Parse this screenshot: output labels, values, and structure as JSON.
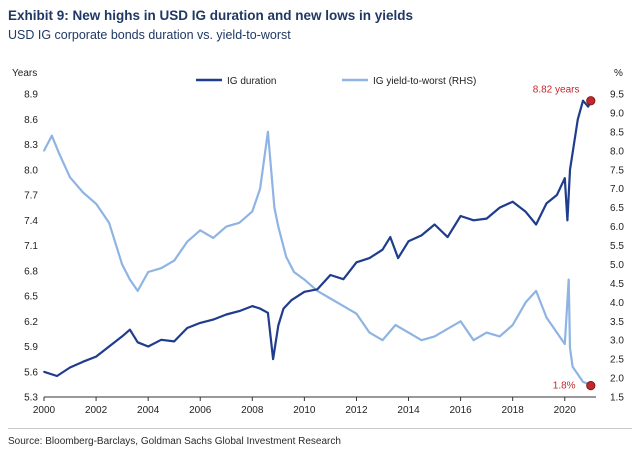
{
  "header": {
    "title": "Exhibit 9: New highs in USD IG duration and new lows in yields",
    "subtitle": "USD IG corporate bonds duration vs. yield-to-worst"
  },
  "footer": {
    "source": "Source: Bloomberg-Barclays, Goldman Sachs Global Investment Research"
  },
  "chart_data": {
    "type": "line",
    "title": "Exhibit 9: New highs in USD IG duration and new lows in yields",
    "subtitle": "USD IG corporate bonds duration vs. yield-to-worst",
    "y_left_label": "Years",
    "y_right_label": "%",
    "x_ticks": [
      "2000",
      "2002",
      "2004",
      "2006",
      "2008",
      "2010",
      "2012",
      "2014",
      "2016",
      "2018",
      "2020"
    ],
    "y_left_ticks": [
      "5.3",
      "5.6",
      "5.9",
      "6.2",
      "6.5",
      "6.8",
      "7.1",
      "7.4",
      "7.7",
      "8.0",
      "8.3",
      "8.6",
      "8.9"
    ],
    "y_right_ticks": [
      "1.5",
      "2.0",
      "2.5",
      "3.0",
      "3.5",
      "4.0",
      "4.5",
      "5.0",
      "5.5",
      "6.0",
      "6.5",
      "7.0",
      "7.5",
      "8.0",
      "8.5",
      "9.0",
      "9.5"
    ],
    "xlim": [
      2000,
      2021.2
    ],
    "ylim_left": [
      5.3,
      8.9
    ],
    "ylim_right": [
      1.5,
      9.5
    ],
    "grid": false,
    "legend_position": "top-center",
    "series": [
      {
        "name": "IG duration",
        "axis": "left",
        "color": "#1f3d8c",
        "x": [
          2000.0,
          2000.5,
          2001.0,
          2001.5,
          2002.0,
          2002.5,
          2003.0,
          2003.3,
          2003.6,
          2004.0,
          2004.5,
          2005.0,
          2005.5,
          2006.0,
          2006.5,
          2007.0,
          2007.5,
          2008.0,
          2008.3,
          2008.6,
          2008.8,
          2009.0,
          2009.2,
          2009.5,
          2010.0,
          2010.5,
          2011.0,
          2011.5,
          2012.0,
          2012.5,
          2013.0,
          2013.3,
          2013.6,
          2014.0,
          2014.5,
          2015.0,
          2015.5,
          2016.0,
          2016.5,
          2017.0,
          2017.5,
          2018.0,
          2018.5,
          2018.9,
          2019.3,
          2019.7,
          2020.0,
          2020.1,
          2020.2,
          2020.35,
          2020.5,
          2020.7,
          2020.9,
          2021.0
        ],
        "y": [
          5.6,
          5.55,
          5.65,
          5.72,
          5.78,
          5.9,
          6.02,
          6.1,
          5.95,
          5.9,
          5.98,
          5.96,
          6.12,
          6.18,
          6.22,
          6.28,
          6.32,
          6.38,
          6.35,
          6.3,
          5.75,
          6.15,
          6.35,
          6.45,
          6.55,
          6.58,
          6.75,
          6.7,
          6.9,
          6.95,
          7.05,
          7.2,
          6.95,
          7.15,
          7.22,
          7.35,
          7.2,
          7.45,
          7.4,
          7.42,
          7.55,
          7.62,
          7.5,
          7.35,
          7.6,
          7.7,
          7.9,
          7.4,
          8.0,
          8.3,
          8.6,
          8.82,
          8.75,
          8.82
        ]
      },
      {
        "name": "IG yield-to-worst (RHS)",
        "axis": "right",
        "color": "#8fb4e3",
        "x": [
          2000.0,
          2000.3,
          2000.6,
          2001.0,
          2001.5,
          2002.0,
          2002.5,
          2003.0,
          2003.3,
          2003.6,
          2004.0,
          2004.5,
          2005.0,
          2005.5,
          2006.0,
          2006.5,
          2007.0,
          2007.5,
          2008.0,
          2008.3,
          2008.6,
          2008.85,
          2009.0,
          2009.3,
          2009.6,
          2010.0,
          2010.5,
          2011.0,
          2011.5,
          2012.0,
          2012.5,
          2013.0,
          2013.5,
          2014.0,
          2014.5,
          2015.0,
          2015.5,
          2016.0,
          2016.5,
          2017.0,
          2017.5,
          2018.0,
          2018.5,
          2018.9,
          2019.3,
          2019.7,
          2020.0,
          2020.15,
          2020.2,
          2020.3,
          2020.5,
          2020.7,
          2020.9,
          2021.0
        ],
        "y": [
          8.0,
          8.4,
          7.9,
          7.3,
          6.9,
          6.6,
          6.1,
          5.0,
          4.6,
          4.3,
          4.8,
          4.9,
          5.1,
          5.6,
          5.9,
          5.7,
          6.0,
          6.1,
          6.4,
          7.0,
          8.5,
          6.5,
          6.0,
          5.2,
          4.8,
          4.6,
          4.3,
          4.1,
          3.9,
          3.7,
          3.2,
          3.0,
          3.4,
          3.2,
          3.0,
          3.1,
          3.3,
          3.5,
          3.0,
          3.2,
          3.1,
          3.4,
          4.0,
          4.3,
          3.6,
          3.2,
          2.9,
          4.6,
          2.8,
          2.3,
          2.1,
          1.9,
          1.85,
          1.8
        ]
      }
    ],
    "annotations": [
      {
        "text": "8.82 years",
        "x": 2021.0,
        "y": 8.82,
        "axis": "left",
        "marker_color": "#c0282d"
      },
      {
        "text": "1.8%",
        "x": 2021.0,
        "y": 1.8,
        "axis": "right",
        "marker_color": "#c0282d"
      }
    ]
  }
}
